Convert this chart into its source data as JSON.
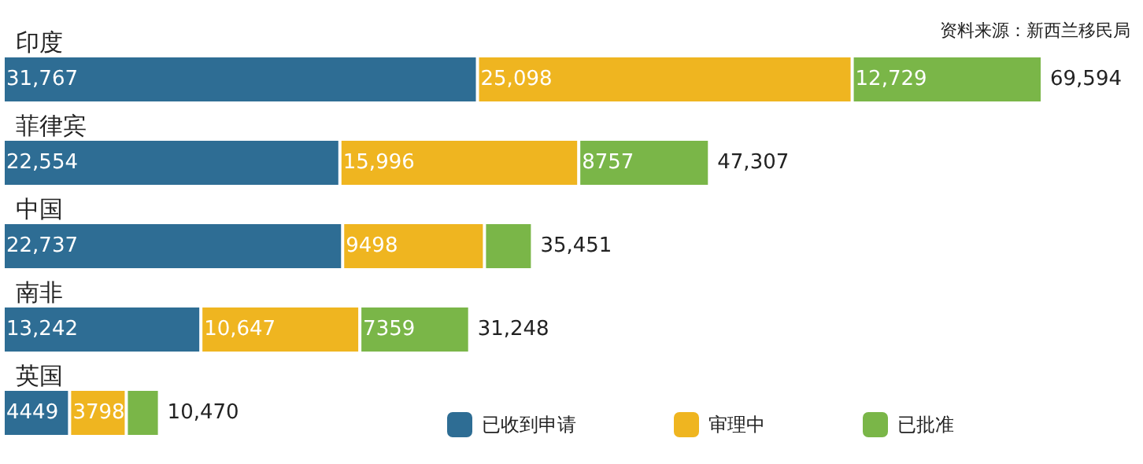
{
  "chart_data": {
    "type": "bar",
    "orientation": "horizontal",
    "stacked": true,
    "categories": [
      "印度",
      "菲律宾",
      "中国",
      "南非",
      "英国"
    ],
    "series": [
      {
        "name": "已收到申请",
        "color": "#2e6d94",
        "values": [
          31767,
          22554,
          22737,
          13242,
          4449
        ],
        "value_labels": [
          "31,767",
          "22,554",
          "22,737",
          "13,242",
          "4449"
        ]
      },
      {
        "name": "审理中",
        "color": "#efb520",
        "values": [
          25098,
          15996,
          9498,
          10647,
          3798
        ],
        "value_labels": [
          "25,098",
          "15,996",
          "9498",
          "10,647",
          "3798"
        ]
      },
      {
        "name": "已批准",
        "color": "#7ab648",
        "values": [
          12729,
          8757,
          3216,
          7359,
          2223
        ],
        "value_labels": [
          "12,729",
          "8757",
          null,
          "7359",
          null
        ]
      }
    ],
    "totals": [
      "69,594",
      "47,307",
      "35,451",
      "31,248",
      "10,470"
    ],
    "annotations": [
      "资料来源：新西兰移民局"
    ],
    "legend": "bottom right",
    "grid": false
  }
}
